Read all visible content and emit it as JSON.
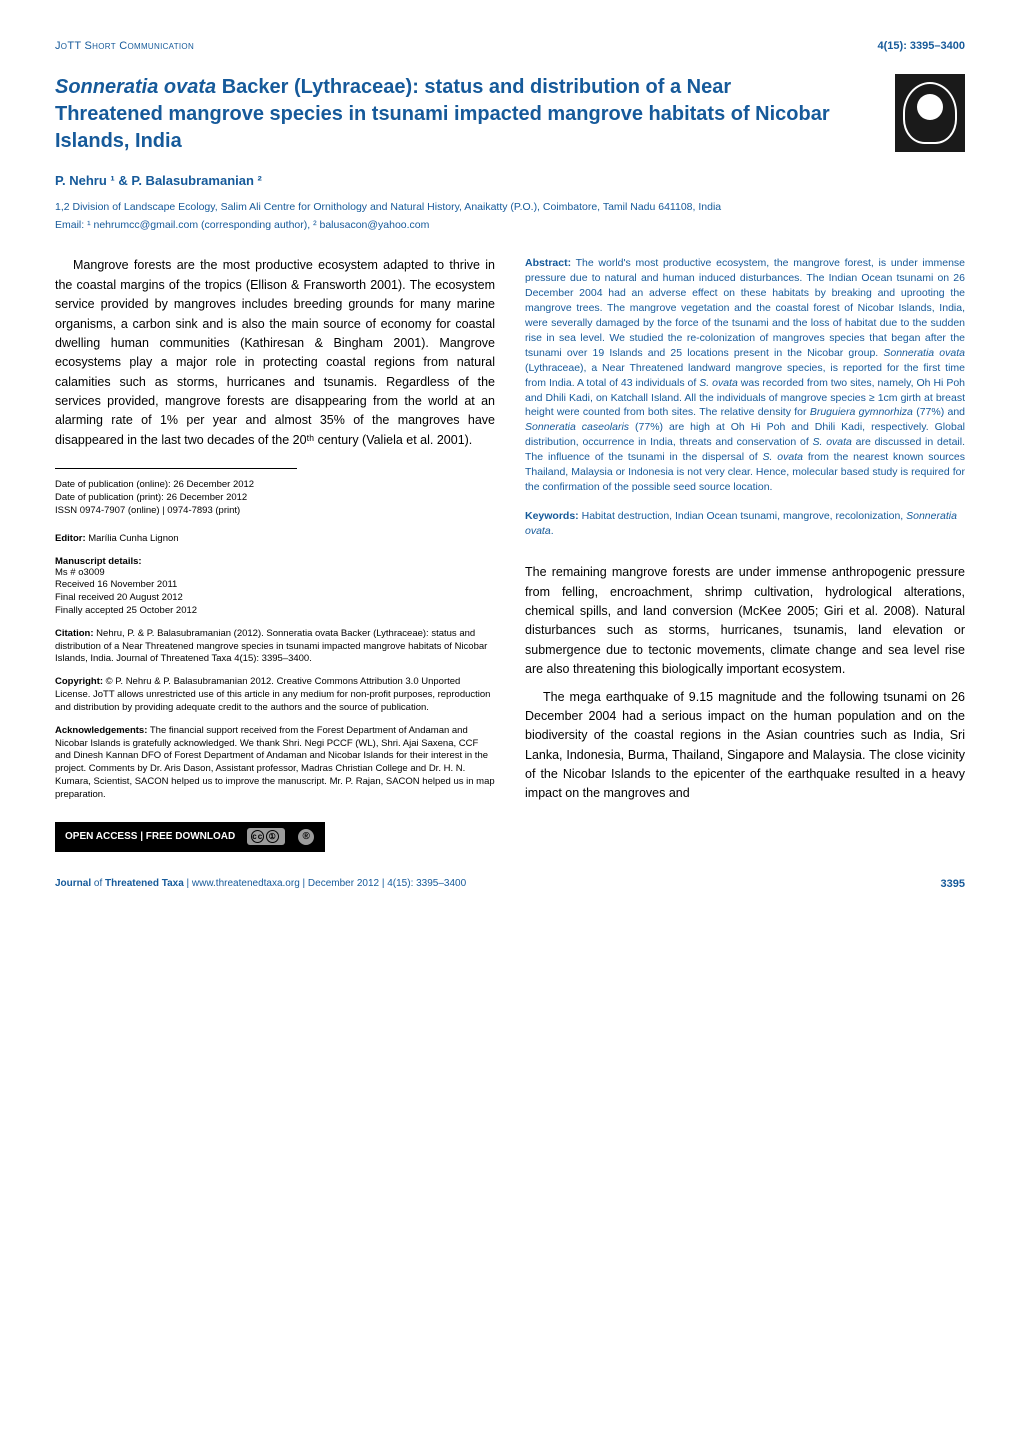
{
  "header": {
    "section": "JoTT Short Communication",
    "pageRange": "4(15): 3395–3400"
  },
  "title": "<em>Sonneratia ovata</em> Backer (Lythraceae): status and distribution of a Near Threatened mangrove species in tsunami impacted mangrove habitats of Nicobar Islands, India",
  "authors": "P. Nehru ¹ & P. Balasubramanian ²",
  "affiliation1": "1,2 Division of Landscape Ecology, Salim Ali Centre for Ornithology and Natural History, Anaikatty (P.O.), Coimbatore, Tamil Nadu 641108, India",
  "affiliation2": "Email: ¹ nehrumcc@gmail.com (corresponding author), ² balusacon@yahoo.com",
  "leftCol": {
    "para1": "Mangrove forests are the most productive ecosystem adapted to thrive in the coastal margins of the tropics (Ellison & Fransworth 2001). The ecosystem service provided by mangroves includes breeding grounds for many marine organisms, a carbon sink and is also the main source of economy for coastal dwelling human communities (Kathiresan & Bingham 2001). Mangrove ecosystems play a major role in protecting coastal regions from natural calamities such as storms, hurricanes and tsunamis. Regardless of the services provided, mangrove forests are disappearing from the world at an alarming rate of 1% per year and almost 35% of the mangroves have disappeared in the last two decades of the 20ᵗʰ century (Valiela et al. 2001).",
    "dates": {
      "online": "Date of publication (online): 26 December 2012",
      "print": "Date of publication (print): 26 December 2012",
      "issn": "ISSN 0974-7907 (online) | 0974-7893 (print)"
    },
    "editorLabel": "Editor:",
    "editor": " Marília Cunha Lignon",
    "manuscriptLabel": "Manuscript details:",
    "manuscript": {
      "ms": "Ms # o3009",
      "received": "Received 16 November 2011",
      "finalReceived": "Final received 20 August 2012",
      "accepted": "Finally accepted 25 October 2012"
    },
    "citationLabel": "Citation:",
    "citation": " Nehru, P. & P. Balasubramanian (2012). Sonneratia ovata Backer (Lythraceae): status and distribution of a Near Threatened mangrove species in tsunami impacted mangrove habitats of Nicobar Islands, India. Journal of Threatened Taxa 4(15): 3395–3400.",
    "copyrightLabel": "Copyright:",
    "copyright": " © P. Nehru & P. Balasubramanian 2012. Creative Commons Attribution 3.0 Unported License. JoTT allows unrestricted use of this article in any medium for non-profit purposes, reproduction and distribution by providing adequate credit to the authors and the source of publication.",
    "ackLabel": "Acknowledgements:",
    "ack": " The financial support received from the Forest Department of Andaman and Nicobar Islands is gratefully acknowledged. We thank Shri. Negi PCCF (WL), Shri. Ajai Saxena, CCF and Dinesh Kannan DFO of Forest Department of Andaman and Nicobar Islands for their interest in the project. Comments by Dr. Aris Dason, Assistant professor, Madras Christian College and Dr. H. N. Kumara, Scientist, SACON helped us to improve the manuscript. Mr. P. Rajan, SACON helped us in map preparation.",
    "oaLabel": "OPEN ACCESS | FREE DOWNLOAD"
  },
  "rightCol": {
    "abstractLabel": "Abstract:",
    "abstract": " The world's most productive ecosystem, the mangrove forest, is under immense pressure due to natural and human induced disturbances. The Indian Ocean tsunami on 26 December 2004 had an adverse effect on these habitats by breaking and uprooting the mangrove trees. The mangrove vegetation and the coastal forest of Nicobar Islands, India, were severally damaged by the force of the tsunami and the loss of habitat due to the sudden rise in sea level. We studied the re-colonization of mangroves species that began after the tsunami over 19 Islands and 25 locations present in the Nicobar group. <em>Sonneratia ovata</em> (Lythraceae), a Near Threatened landward mangrove species, is reported for the first time from India. A total of 43 individuals of <em>S. ovata</em> was recorded from two sites, namely, Oh Hi Poh and Dhili Kadi, on Katchall Island. All the individuals of mangrove species ≥ 1cm girth at breast height were counted from both sites. The relative density for <em>Bruguiera gymnorhiza</em> (77%) and <em>Sonneratia caseolaris</em> (77%) are high at Oh Hi Poh and Dhili Kadi, respectively. Global distribution, occurrence in India, threats and conservation of <em>S. ovata</em> are discussed in detail. The influence of the tsunami in the dispersal of <em>S. ovata</em> from the nearest known sources Thailand, Malaysia or Indonesia is not very clear. Hence, molecular based study is required for the confirmation of the possible seed source location.",
    "keywordsLabel": "Keywords:",
    "keywords": " Habitat destruction, Indian Ocean tsunami, mangrove, recolonization, <em>Sonneratia ovata</em>.",
    "para2": "The remaining mangrove forests are under immense anthropogenic pressure from felling, encroachment, shrimp cultivation, hydrological alterations, chemical spills, and land conversion (McKee 2005; Giri et al. 2008). Natural disturbances such as storms, hurricanes, tsunamis, land elevation or submergence due to tectonic movements, climate change and sea level rise are also threatening this biologically important ecosystem.",
    "para3": "The mega earthquake of 9.15 magnitude and the following tsunami on 26 December 2004 had a serious impact on the human population and on the biodiversity of the coastal regions in the Asian countries such as India, Sri Lanka, Indonesia, Burma, Thailand, Singapore and Malaysia. The close vicinity of the Nicobar Islands to the epicenter of the earthquake resulted in a heavy impact on the mangroves and"
  },
  "footer": {
    "journalLine": "Journal of Threatened Taxa | www.threatenedtaxa.org | December 2012 | 4(15): 3395–3400",
    "pageNumber": "3395"
  },
  "colors": {
    "brandBlue": "#165a9a",
    "black": "#000000",
    "white": "#ffffff",
    "grey": "#9b9b9b"
  }
}
